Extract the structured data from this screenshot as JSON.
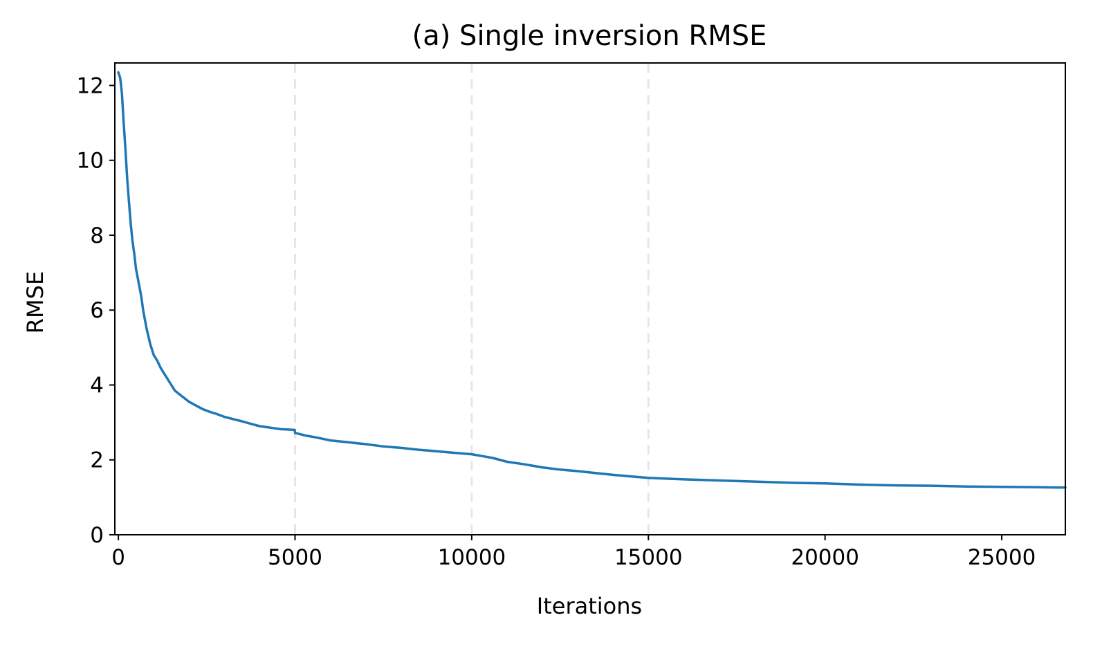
{
  "chart_data": {
    "type": "line",
    "title": "(a) Single inversion RMSE",
    "xlabel": "Iterations",
    "ylabel": "RMSE",
    "xlim": [
      -100,
      26800
    ],
    "ylim": [
      0,
      12.6
    ],
    "xticks": [
      0,
      5000,
      10000,
      15000,
      20000,
      25000
    ],
    "xtick_labels": [
      "0",
      "5000",
      "10000",
      "15000",
      "20000",
      "25000"
    ],
    "yticks": [
      0,
      2,
      4,
      6,
      8,
      10,
      12
    ],
    "ytick_labels": [
      "0",
      "2",
      "4",
      "6",
      "8",
      "10",
      "12"
    ],
    "grid": false,
    "vlines": [
      5000,
      10000,
      15000
    ],
    "vline_color": "#e6e6e6",
    "series": [
      {
        "color": "#1f77b4",
        "x": [
          0,
          50,
          100,
          150,
          200,
          250,
          300,
          350,
          400,
          450,
          500,
          550,
          600,
          650,
          700,
          750,
          800,
          900,
          1000,
          1100,
          1200,
          1300,
          1400,
          1500,
          1600,
          1800,
          2000,
          2200,
          2400,
          2600,
          2800,
          3000,
          3200,
          3500,
          3800,
          4000,
          4300,
          4600,
          4990,
          5000,
          5300,
          5600,
          6000,
          6500,
          7000,
          7500,
          8000,
          8500,
          9000,
          9500,
          10000,
          10300,
          10600,
          11000,
          11500,
          12000,
          12500,
          13000,
          13500,
          14000,
          14500,
          15000,
          16000,
          17000,
          18000,
          19000,
          20000,
          21000,
          22000,
          23000,
          24000,
          25000,
          26000,
          26800
        ],
        "y": [
          12.35,
          12.2,
          11.8,
          11.0,
          10.3,
          9.5,
          8.9,
          8.3,
          7.85,
          7.5,
          7.1,
          6.85,
          6.6,
          6.35,
          6.0,
          5.75,
          5.5,
          5.1,
          4.8,
          4.65,
          4.45,
          4.3,
          4.15,
          4.0,
          3.85,
          3.7,
          3.55,
          3.45,
          3.35,
          3.28,
          3.22,
          3.15,
          3.1,
          3.03,
          2.95,
          2.9,
          2.86,
          2.82,
          2.8,
          2.72,
          2.65,
          2.6,
          2.52,
          2.47,
          2.42,
          2.36,
          2.32,
          2.27,
          2.23,
          2.19,
          2.15,
          2.1,
          2.05,
          1.95,
          1.88,
          1.8,
          1.74,
          1.7,
          1.65,
          1.6,
          1.56,
          1.52,
          1.48,
          1.45,
          1.42,
          1.39,
          1.37,
          1.34,
          1.32,
          1.31,
          1.29,
          1.28,
          1.27,
          1.26
        ]
      }
    ]
  }
}
